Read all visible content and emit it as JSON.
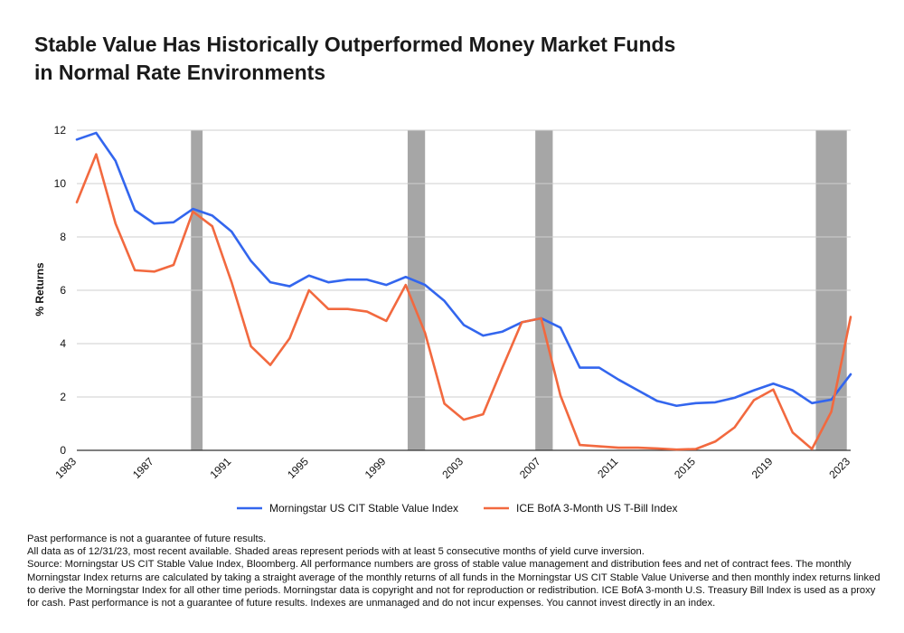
{
  "title_lines": [
    "Stable Value Has Historically Outperformed Money Market Funds",
    "in Normal Rate Environments"
  ],
  "chart_data": {
    "type": "line",
    "ylabel": "% Returns",
    "xlabel": "",
    "xlim": [
      1983,
      2023
    ],
    "ylim": [
      0,
      12
    ],
    "y_ticks": [
      0,
      2,
      4,
      6,
      8,
      10,
      12
    ],
    "x_ticks": [
      1983,
      1987,
      1991,
      1995,
      1999,
      2003,
      2007,
      2011,
      2015,
      2019,
      2023
    ],
    "grid": "horizontal",
    "legend_position": "bottom",
    "x": [
      1983,
      1984,
      1985,
      1986,
      1987,
      1988,
      1989,
      1990,
      1991,
      1992,
      1993,
      1994,
      1995,
      1996,
      1997,
      1998,
      1999,
      2000,
      2001,
      2002,
      2003,
      2004,
      2005,
      2006,
      2007,
      2008,
      2009,
      2010,
      2011,
      2012,
      2013,
      2014,
      2015,
      2016,
      2017,
      2018,
      2019,
      2020,
      2021,
      2022,
      2023
    ],
    "series": [
      {
        "name": "Morningstar US CIT Stable Value Index",
        "color": "#3366ee",
        "values": [
          11.65,
          11.9,
          10.85,
          9.0,
          8.5,
          8.55,
          9.05,
          8.8,
          8.2,
          7.1,
          6.3,
          6.15,
          6.55,
          6.3,
          6.4,
          6.4,
          6.2,
          6.5,
          6.2,
          5.6,
          4.7,
          4.3,
          4.45,
          4.8,
          4.95,
          4.6,
          3.1,
          3.1,
          2.65,
          2.25,
          1.85,
          1.67,
          1.77,
          1.8,
          1.97,
          2.25,
          2.5,
          2.25,
          1.77,
          1.9,
          2.85
        ]
      },
      {
        "name": "ICE BofA 3-Month US T-Bill Index",
        "color": "#f2693f",
        "values": [
          9.3,
          11.1,
          8.5,
          6.75,
          6.7,
          6.95,
          8.95,
          8.4,
          6.3,
          3.9,
          3.2,
          4.2,
          6.0,
          5.3,
          5.3,
          5.2,
          4.85,
          6.2,
          4.4,
          1.75,
          1.15,
          1.35,
          3.1,
          4.8,
          4.95,
          2.05,
          0.2,
          0.15,
          0.1,
          0.1,
          0.07,
          0.03,
          0.05,
          0.33,
          0.86,
          1.88,
          2.28,
          0.67,
          0.05,
          1.45,
          5.0
        ]
      }
    ],
    "shaded_periods": [
      [
        1988.9,
        1989.5
      ],
      [
        2000.1,
        2001.0
      ],
      [
        2006.7,
        2007.6
      ],
      [
        2021.2,
        2022.8
      ]
    ],
    "shade_color": "#a6a6a6"
  },
  "notes": [
    "Past performance is not a guarantee of future results.",
    "All data as of 12/31/23, most recent available. Shaded areas represent periods with at least 5 consecutive months of yield curve inversion.",
    "Source: Morningstar US CIT Stable Value Index, Bloomberg. All performance numbers are gross of stable value management and distribution fees and net of contract fees. The monthly Morningstar Index returns are calculated by taking a straight average of the monthly returns of all funds in the Morningstar US CIT Stable Value Universe and then monthly index returns linked to derive the Morningstar Index for all other time periods. Morningstar data is copyright and not for reproduction or redistribution. ICE BofA 3-month U.S. Treasury Bill Index is used as a proxy for cash. Past performance is not a guarantee of future results. Indexes are unmanaged and do not incur expenses. You cannot invest directly in an index."
  ]
}
